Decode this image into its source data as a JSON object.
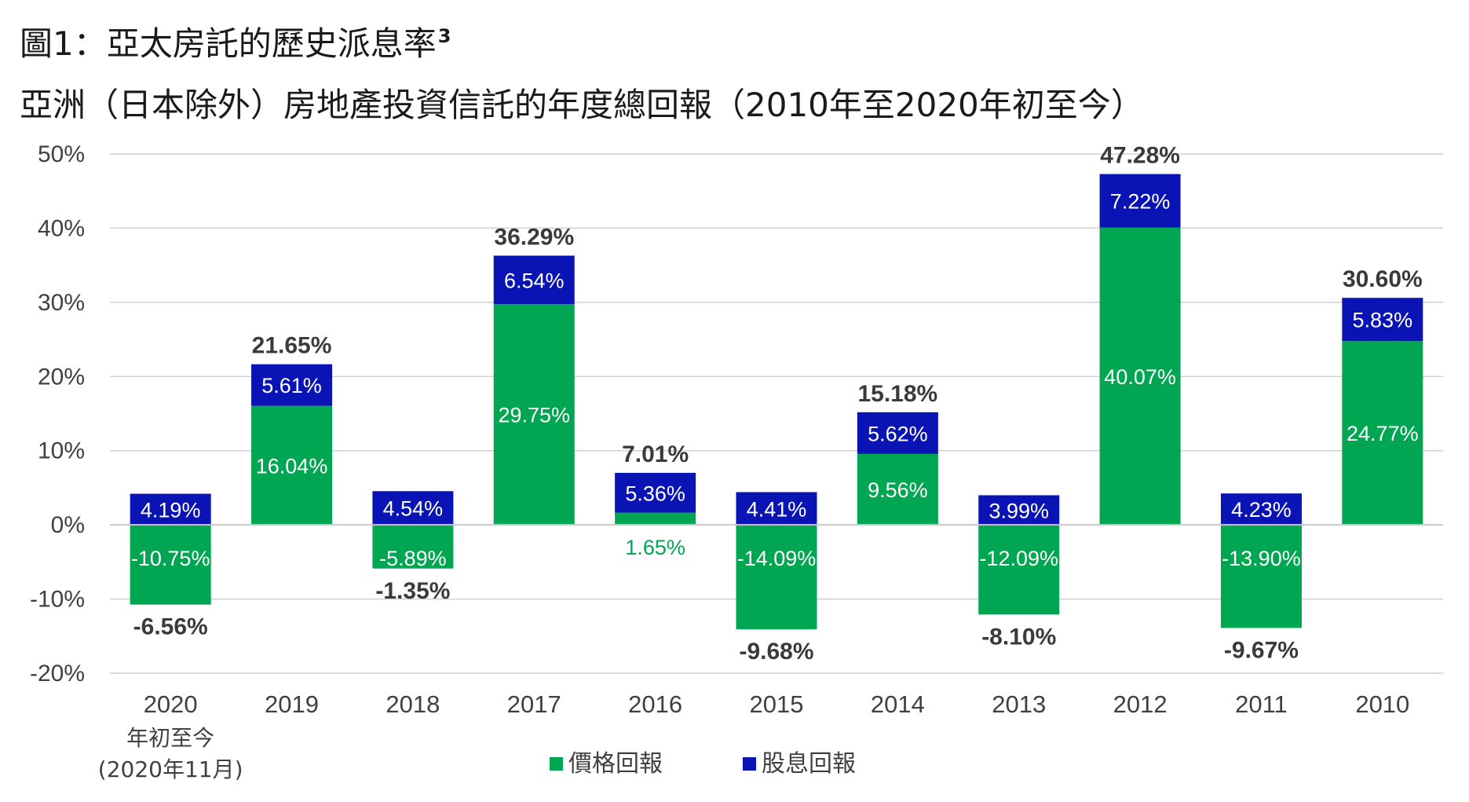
{
  "title": "圖1：亞太房託的歷史派息率",
  "title_superscript": "3",
  "subtitle": "亞洲（日本除外）房地產投資信託的年度總回報（2010年至2020年初至今）",
  "chart_data": {
    "type": "bar",
    "stacked": true,
    "categories": [
      "2020",
      "2019",
      "2018",
      "2017",
      "2016",
      "2015",
      "2014",
      "2013",
      "2012",
      "2011",
      "2010"
    ],
    "category_sublabels": [
      [
        "年初至今",
        "(2020年11月)"
      ],
      [],
      [],
      [],
      [],
      [],
      [],
      [],
      [],
      [],
      []
    ],
    "series": [
      {
        "name": "價格回報",
        "color": "#00a651",
        "values": [
          -10.75,
          16.04,
          -5.89,
          29.75,
          1.65,
          -14.09,
          9.56,
          -12.09,
          40.07,
          -13.9,
          24.77
        ],
        "labels": [
          "-10.75%",
          "16.04%",
          "-5.89%",
          "29.75%",
          "1.65%",
          "-14.09%",
          "9.56%",
          "-12.09%",
          "40.07%",
          "-13.90%",
          "24.77%"
        ]
      },
      {
        "name": "股息回報",
        "color": "#0a14b4",
        "values": [
          4.19,
          5.61,
          4.54,
          6.54,
          5.36,
          4.41,
          5.62,
          3.99,
          7.22,
          4.23,
          5.83
        ],
        "labels": [
          "4.19%",
          "5.61%",
          "4.54%",
          "6.54%",
          "5.36%",
          "4.41%",
          "5.62%",
          "3.99%",
          "7.22%",
          "4.23%",
          "5.83%"
        ]
      }
    ],
    "totals": [
      -6.56,
      21.65,
      -1.35,
      36.29,
      7.01,
      -9.68,
      15.18,
      -8.1,
      47.28,
      -9.67,
      30.6
    ],
    "total_labels": [
      "-6.56%",
      "21.65%",
      "-1.35%",
      "36.29%",
      "7.01%",
      "-9.68%",
      "15.18%",
      "-8.10%",
      "47.28%",
      "-9.67%",
      "30.60%"
    ],
    "y_ticks": [
      50,
      40,
      30,
      20,
      10,
      0,
      -10,
      -20
    ],
    "y_tick_labels": [
      "50%",
      "40%",
      "30%",
      "20%",
      "10%",
      "0%",
      "-10%",
      "-20%"
    ],
    "ylim": [
      -20,
      50
    ],
    "grid": true,
    "legend_position": "bottom-center"
  }
}
